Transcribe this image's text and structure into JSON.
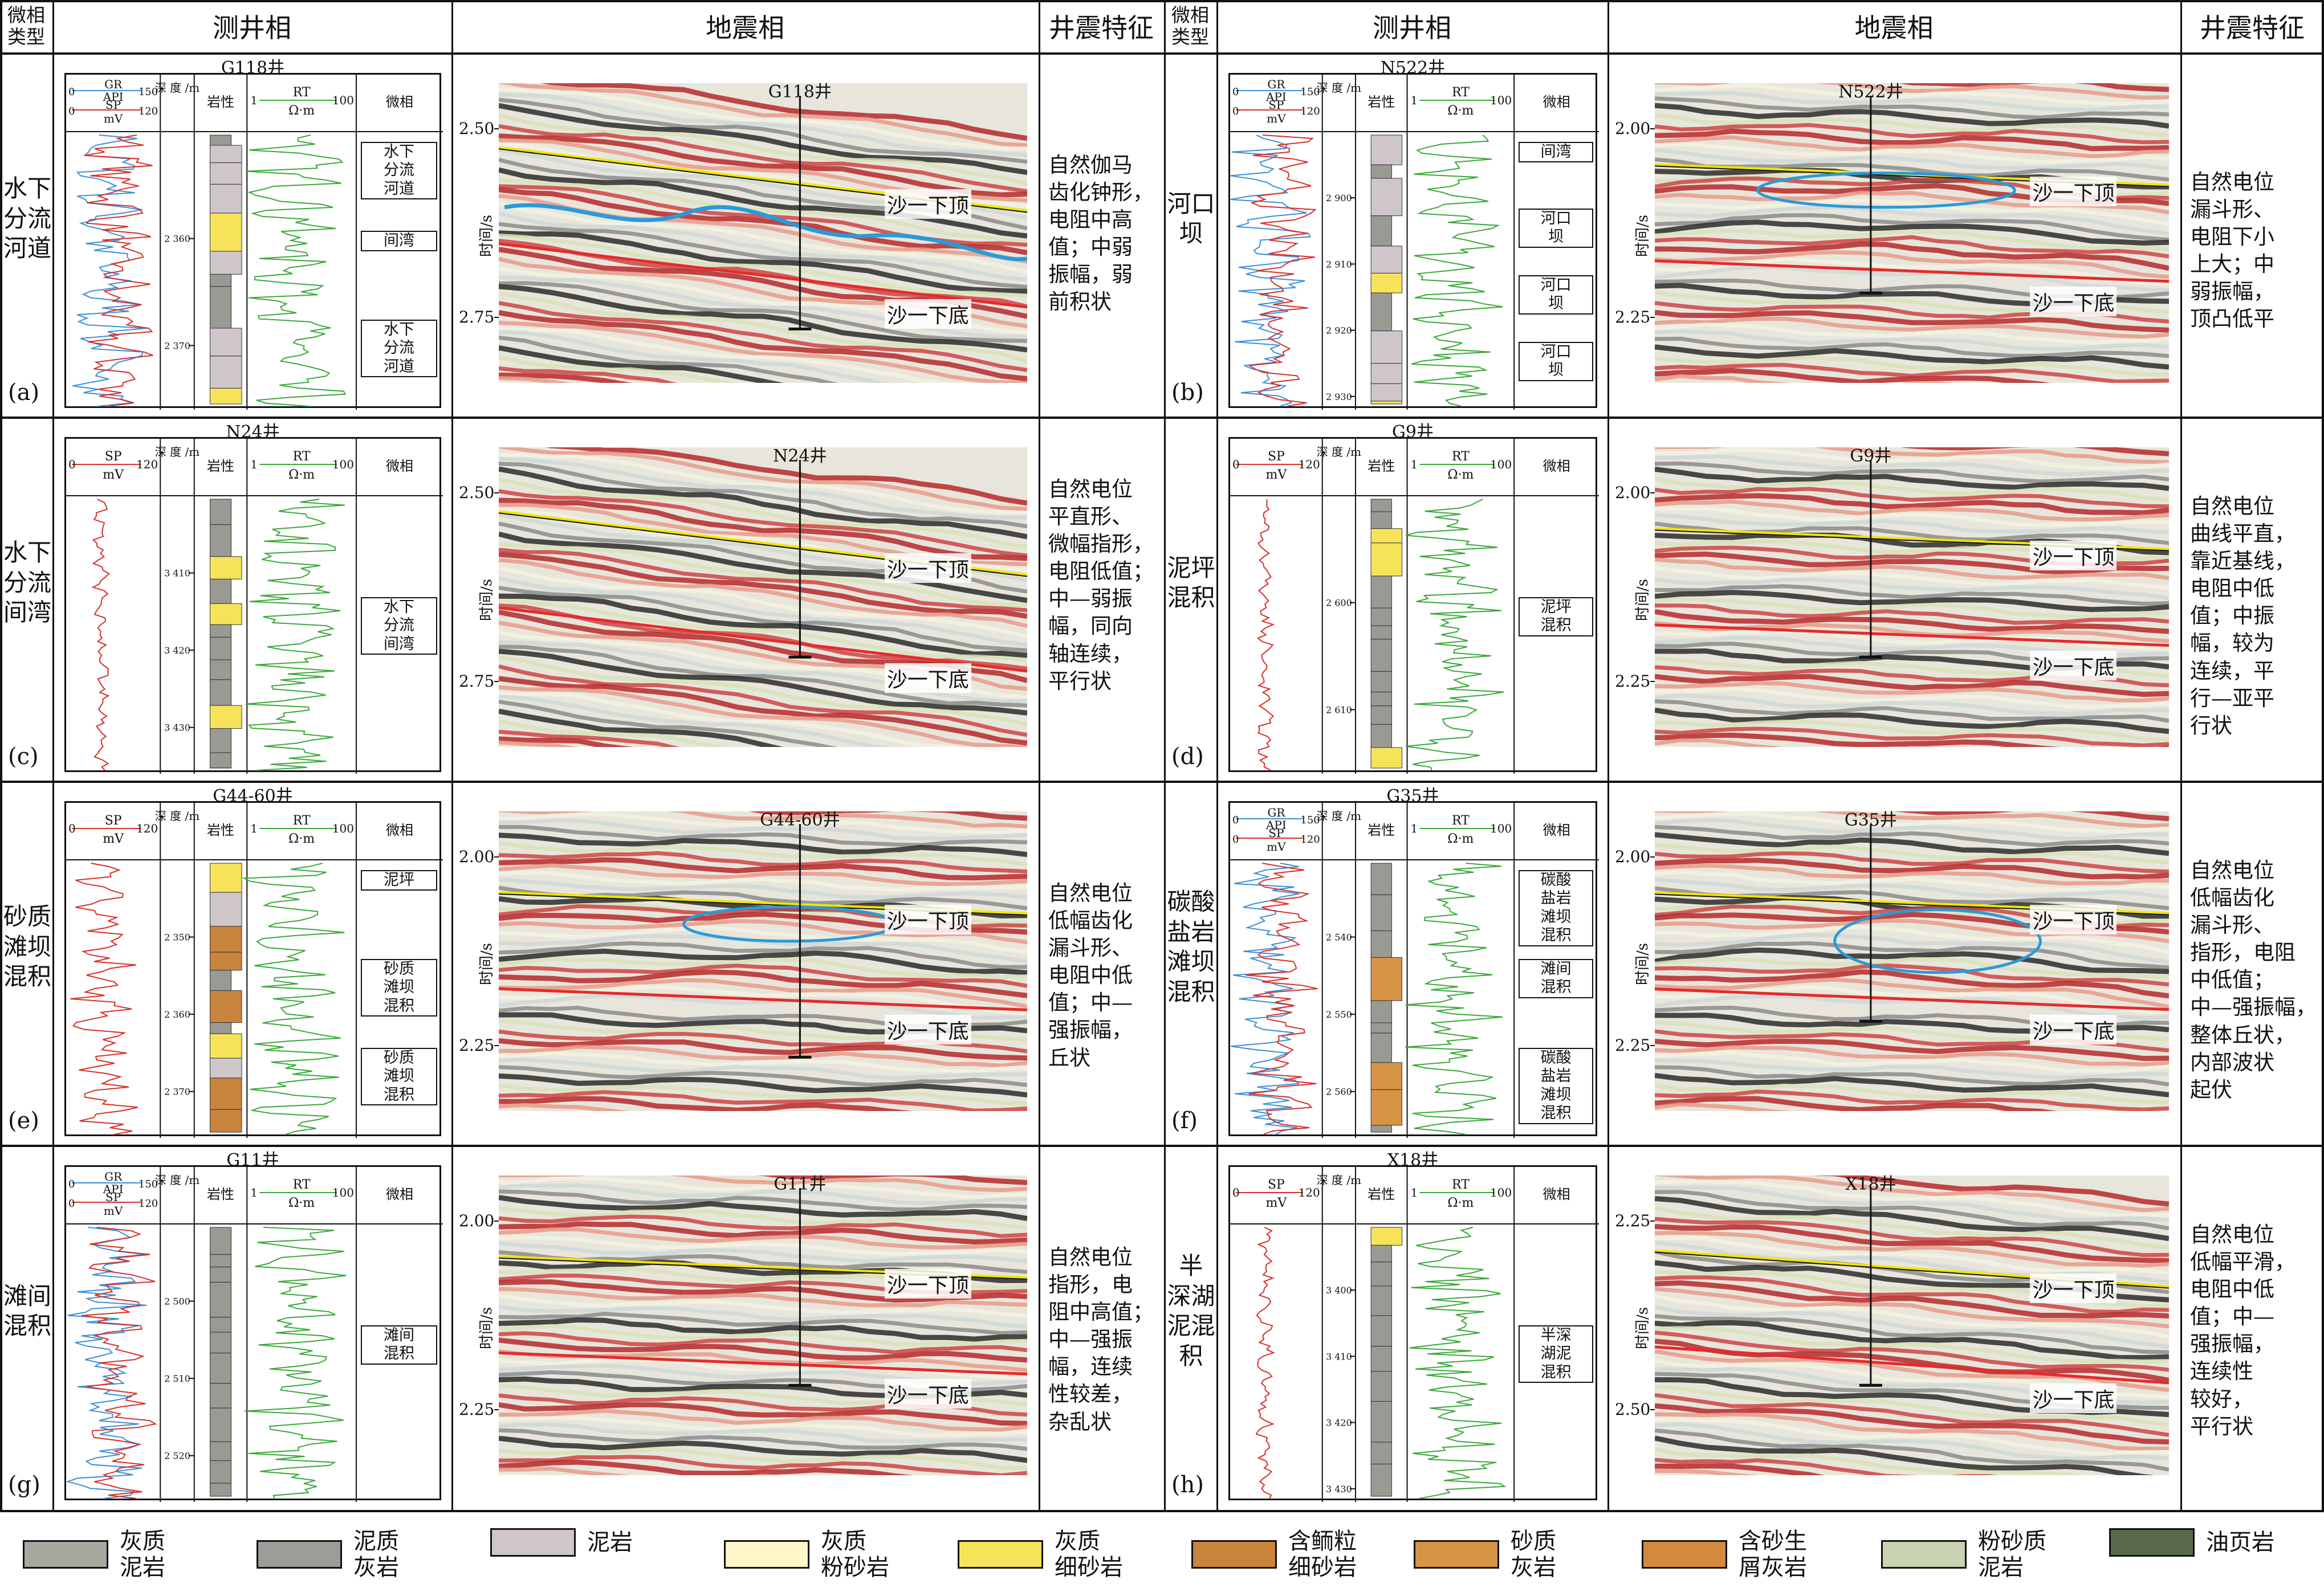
{
  "header": {
    "microfacies_type": [
      "微相",
      "类型"
    ],
    "well_log_facies": "测井相",
    "seismic_facies": "地震相",
    "well_seismic_features": "井震特征"
  },
  "rows": [
    {
      "tag": "(a)",
      "type": "水下\n分流\n河道",
      "well": "G118井",
      "features": "自然伽马\n齿化钟形，\n电阻中高\n值；中弱\n振幅，弱\n前积状",
      "logs": {
        "curve_left": "GR · API · SP · mV",
        "depth_ticks": [
          "2 360",
          "2 370"
        ],
        "facies_boxes": [
          "水下\n分流\n河道",
          "间湾",
          "水下\n分流\n河道"
        ]
      },
      "seismic": {
        "yticks": [
          "2.50",
          "2.75"
        ],
        "ylabel": "时间/s"
      }
    },
    {
      "tag": "(b)",
      "type": "河口\n坝",
      "well": "N522井",
      "features": "自然电位\n漏斗形、\n电阻下小\n上大；中\n弱振幅，\n顶凸低平",
      "logs": {
        "depth_ticks": [
          "2 900",
          "2 910",
          "2 920",
          "2 930"
        ],
        "facies_boxes": [
          "间湾",
          "河口\n坝",
          "河口\n坝",
          "河口\n坝"
        ]
      },
      "seismic": {
        "yticks": [
          "2.00",
          "2.25"
        ],
        "ylabel": "时间/s"
      }
    },
    {
      "tag": "(c)",
      "type": "水下\n分流\n间湾",
      "well": "N24井",
      "features": "自然电位\n平直形、\n微幅指形，\n电阻低值；\n中—弱振\n幅，同向\n轴连续，\n平行状",
      "logs": {
        "depth_ticks": [
          "3 410",
          "3 420",
          "3 430"
        ],
        "facies_boxes": [
          "水下\n分流\n间湾"
        ]
      },
      "seismic": {
        "yticks": [
          "2.50",
          "2.75"
        ],
        "ylabel": "时间/s"
      }
    },
    {
      "tag": "(d)",
      "type": "泥坪\n混积",
      "well": "G9井",
      "features": "自然电位\n曲线平直，\n靠近基线，\n电阻中低\n值；中振\n幅，较为\n连续，平\n行—亚平\n行状",
      "logs": {
        "depth_ticks": [
          "2 600",
          "2 610"
        ],
        "facies_boxes": [
          "泥坪\n混积"
        ]
      },
      "seismic": {
        "yticks": [
          "2.00",
          "2.25"
        ],
        "ylabel": "时间/s"
      }
    },
    {
      "tag": "(e)",
      "type": "砂质\n滩坝\n混积",
      "well": "G44-60井",
      "features": "自然电位\n低幅齿化\n漏斗形、\n电阻中低\n值；中—\n强振幅，\n丘状",
      "logs": {
        "depth_ticks": [
          "2 350",
          "2 360",
          "2 370"
        ],
        "facies_boxes": [
          "泥坪",
          "砂质\n滩坝\n混积",
          "砂质\n滩坝\n混积"
        ]
      },
      "seismic": {
        "yticks": [
          "2.00",
          "2.25"
        ],
        "ylabel": "时间/s"
      }
    },
    {
      "tag": "(f)",
      "type": "碳酸\n盐岩\n滩坝\n混积",
      "well": "G35井",
      "features": "自然电位\n低幅齿化\n漏斗形、\n指形，电阻\n中低值；\n中—强振幅，\n整体丘状，\n内部波状\n起伏",
      "logs": {
        "depth_ticks": [
          "2 540",
          "2 550",
          "2 560"
        ],
        "facies_boxes": [
          "碳酸\n盐岩\n滩坝\n混积",
          "滩间\n混积",
          "碳酸\n盐岩\n滩坝\n混积"
        ]
      },
      "seismic": {
        "yticks": [
          "2.00",
          "2.25"
        ],
        "ylabel": "时间/s"
      }
    },
    {
      "tag": "(g)",
      "type": "滩间\n混积",
      "well": "G11井",
      "features": "自然电位\n指形，电\n阻中高值；\n中—强振\n幅，连续\n性较差，\n杂乱状",
      "logs": {
        "depth_ticks": [
          "2 500",
          "2 510",
          "2 520"
        ],
        "facies_boxes": [
          "滩间\n混积"
        ]
      },
      "seismic": {
        "yticks": [
          "2.00",
          "2.25"
        ],
        "ylabel": "时间/s"
      }
    },
    {
      "tag": "(h)",
      "type": "半\n深湖\n泥混\n积",
      "well": "X18井",
      "features": "自然电位\n低幅平滑，\n电阻中低\n值；中—\n强振幅，\n连续性\n较好，\n平行状",
      "logs": {
        "depth_ticks": [
          "3 400",
          "3 410",
          "3 420",
          "3 430"
        ],
        "facies_boxes": [
          "半深\n湖泥\n混积"
        ]
      },
      "seismic": {
        "yticks": [
          "2.25",
          "2.50"
        ],
        "ylabel": "时间/s"
      }
    }
  ],
  "log_labels": {
    "gr": "GR",
    "api": "API",
    "sp": "SP",
    "mv": "mV",
    "rt": "RT",
    "ohm": "Ω·m",
    "gr_min": "0",
    "gr_max": "150",
    "sp_min": "0",
    "sp_max": "120",
    "rt_min": "1",
    "rt_max": "100",
    "depth": "深\n度\n/m",
    "lithology": "岩性",
    "microfacies": "微相"
  },
  "horizons": {
    "top": "沙一下顶",
    "bottom": "沙一下底"
  },
  "legend": [
    {
      "label": "灰质\n泥岩",
      "color": "#a8a8a0"
    },
    {
      "label": "泥质\n灰岩",
      "color": "#9c9c98"
    },
    {
      "label": "泥岩",
      "color": "#cfc6cc"
    },
    {
      "label": "灰质\n粉砂岩",
      "color": "#fdf6c8"
    },
    {
      "label": "灰质\n细砂岩",
      "color": "#f6e35a"
    },
    {
      "label": "含鲕粒\n细砂岩",
      "color": "#c9843e"
    },
    {
      "label": "砂质\n灰岩",
      "color": "#d79444"
    },
    {
      "label": "含砂生\n屑灰岩",
      "color": "#d48a3c"
    },
    {
      "label": "粉砂质\n泥岩",
      "color": "#c9d3b4"
    },
    {
      "label": "油页岩",
      "color": "#5a6a4a"
    }
  ],
  "colors": {
    "gr": "#3b8fd6",
    "sp": "#d6302a",
    "rt": "#3aa83a",
    "top_horizon": "#f2e500",
    "bottom_horizon": "#e52b2b",
    "body_outline": "#2a9ad8"
  }
}
